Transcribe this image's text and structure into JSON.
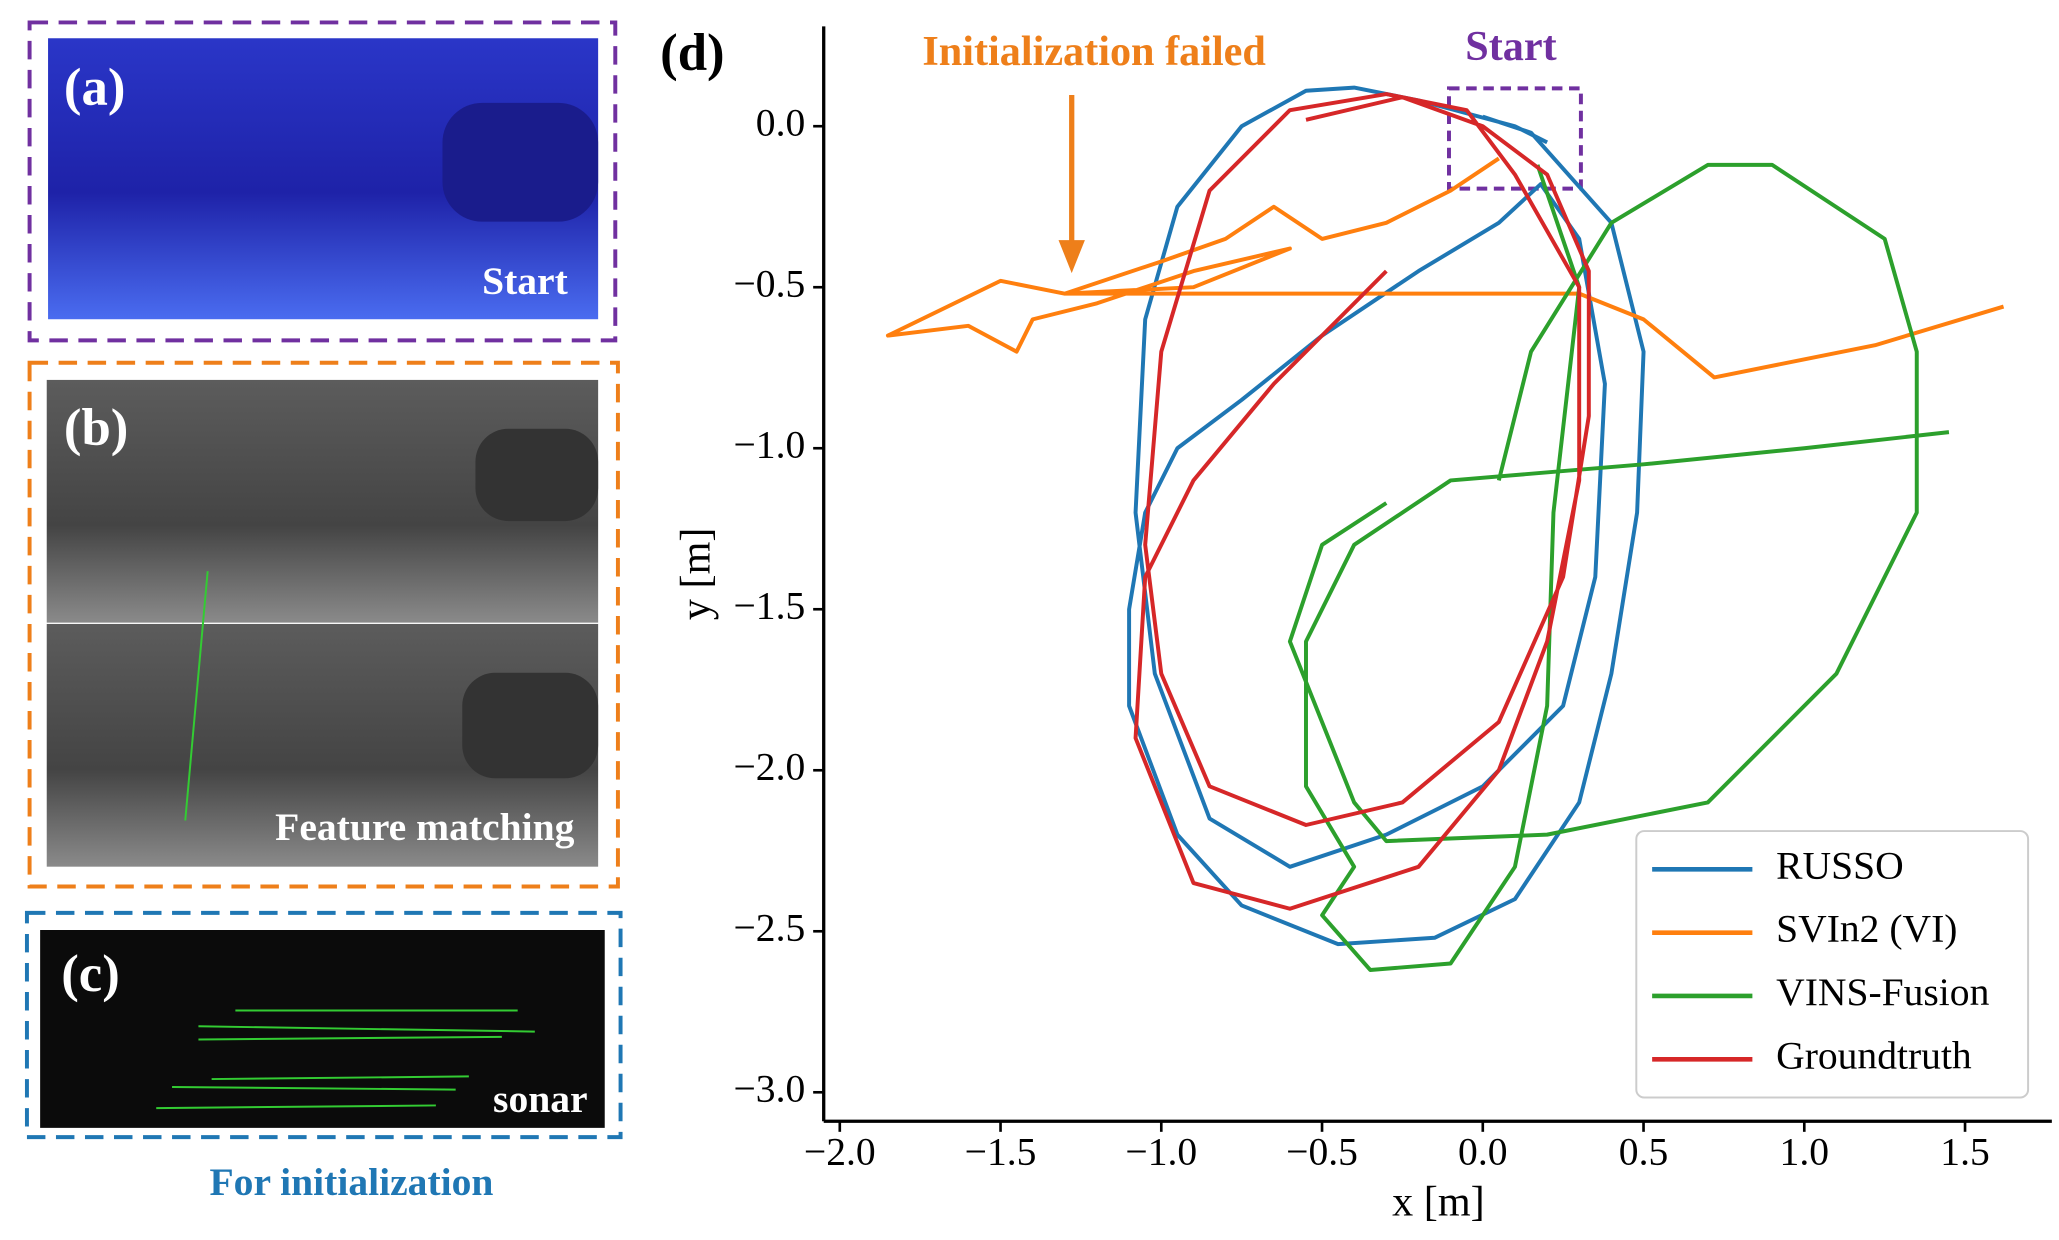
{
  "panels": [
    {
      "label": "(a)",
      "caption": "Start"
    },
    {
      "label": "(b)",
      "caption": "Feature matching"
    },
    {
      "label": "(c)",
      "caption": "sonar"
    }
  ],
  "footer": "For initialization",
  "chart_data": {
    "type": "line",
    "panel_label": "(d)",
    "x_label": "x [m]",
    "y_label": "y [m]",
    "annotations": [
      {
        "text": "Initialization failed",
        "color": "#ee7f1a"
      },
      {
        "text": "Start",
        "color": "#7030a0"
      }
    ],
    "xlim": [
      -2.05,
      1.77
    ],
    "ylim": [
      -3.09,
      0.31
    ],
    "xticks": [
      {
        "value": -2,
        "label": "−2.0"
      },
      {
        "value": -1.5,
        "label": "−1.5"
      },
      {
        "value": -1,
        "label": "−1.0"
      },
      {
        "value": -0.5,
        "label": "−0.5"
      },
      {
        "value": 0,
        "label": "0.0"
      },
      0.5,
      {
        "value": 1,
        "label": "1.0"
      },
      1.5
    ],
    "yticks": [
      {
        "value": 0,
        "label": "0.0"
      },
      {
        "value": -0.5,
        "label": "−0.5"
      },
      {
        "value": -1,
        "label": "−1.0"
      },
      {
        "value": -1.5,
        "label": "−1.5"
      },
      {
        "value": -2,
        "label": "−2.0"
      },
      {
        "value": -2.5,
        "label": "−2.5"
      },
      {
        "value": -3,
        "label": "−3.0"
      }
    ],
    "legend": "lower right",
    "series": [
      {
        "name": "RUSSO",
        "color": "#1f77b4",
        "x": [
          0.0,
          0.15,
          0.4,
          0.5,
          0.48,
          0.4,
          0.3,
          0.1,
          -0.15,
          -0.45,
          -0.75,
          -0.95,
          -1.1,
          -1.1,
          -1.05,
          -0.95,
          -0.75,
          -0.5,
          -0.2,
          0.05,
          0.18,
          0.3,
          0.38,
          0.35,
          0.25,
          0.0,
          -0.3,
          -0.6,
          -0.85,
          -1.02,
          -1.08,
          -1.05,
          -0.95,
          -0.75,
          -0.55,
          -0.4,
          -0.2,
          0.1,
          0.2
        ],
        "values": [
          0.03,
          -0.02,
          -0.3,
          -0.7,
          -1.2,
          -1.7,
          -2.1,
          -2.4,
          -2.52,
          -2.54,
          -2.42,
          -2.2,
          -1.8,
          -1.5,
          -1.2,
          -1.0,
          -0.85,
          -0.65,
          -0.45,
          -0.3,
          -0.18,
          -0.35,
          -0.8,
          -1.4,
          -1.8,
          -2.05,
          -2.2,
          -2.3,
          -2.15,
          -1.7,
          -1.2,
          -0.6,
          -0.25,
          0.0,
          0.11,
          0.12,
          0.08,
          0.0,
          -0.05
        ]
      },
      {
        "name": "SVIn2 (VI)",
        "color": "#ff7f0e",
        "x": [
          0.05,
          -0.1,
          -0.3,
          -0.5,
          -0.65,
          -0.8,
          -1.0,
          -1.3,
          -1.5,
          -1.85,
          -1.6,
          -1.45,
          -1.4,
          -1.2,
          -0.9,
          -0.6,
          -0.9,
          -1.3,
          0.3,
          0.5,
          0.72,
          1.22,
          1.62
        ],
        "values": [
          -0.1,
          -0.2,
          -0.3,
          -0.35,
          -0.25,
          -0.35,
          -0.42,
          -0.52,
          -0.48,
          -0.65,
          -0.62,
          -0.7,
          -0.6,
          -0.55,
          -0.45,
          -0.38,
          -0.5,
          -0.52,
          -0.52,
          -0.6,
          -0.78,
          -0.68,
          -0.56
        ]
      },
      {
        "name": "VINS-Fusion",
        "color": "#2ca02c",
        "x": [
          0.17,
          0.3,
          0.22,
          0.2,
          0.1,
          -0.1,
          -0.35,
          -0.5,
          -0.4,
          -0.55,
          -0.55,
          -0.4,
          -0.1,
          0.5,
          1.0,
          1.45,
          null,
          -0.3,
          -0.5,
          -0.6,
          -0.4,
          -0.3,
          0.2,
          0.7,
          1.1,
          1.35,
          1.35,
          1.25,
          0.9,
          0.7,
          0.4,
          0.15,
          0.05
        ],
        "values": [
          -0.12,
          -0.5,
          -1.2,
          -1.8,
          -2.3,
          -2.6,
          -2.62,
          -2.45,
          -2.3,
          -2.05,
          -1.6,
          -1.3,
          -1.1,
          -1.05,
          -1.0,
          -0.95,
          null,
          -1.17,
          -1.3,
          -1.6,
          -2.1,
          -2.22,
          -2.2,
          -2.1,
          -1.7,
          -1.2,
          -0.7,
          -0.35,
          -0.12,
          -0.12,
          -0.3,
          -0.7,
          -1.1
        ]
      },
      {
        "name": "Groundtruth",
        "color": "#d62728",
        "x": [
          -0.55,
          -0.25,
          0.0,
          0.2,
          0.33,
          0.33,
          0.25,
          0.05,
          -0.25,
          -0.55,
          -0.85,
          -1.0,
          -1.05,
          -1.0,
          -0.85,
          -0.6,
          -0.3,
          -0.05,
          0.1,
          0.3,
          0.3,
          0.2,
          0.05,
          -0.2,
          -0.6,
          -0.9,
          -1.08,
          -1.05,
          -0.9,
          -0.65,
          -0.3
        ],
        "values": [
          0.02,
          0.09,
          0.0,
          -0.15,
          -0.45,
          -0.9,
          -1.4,
          -1.85,
          -2.1,
          -2.17,
          -2.05,
          -1.7,
          -1.3,
          -0.7,
          -0.2,
          0.05,
          0.1,
          0.05,
          -0.15,
          -0.5,
          -1.1,
          -1.6,
          -2.0,
          -2.3,
          -2.43,
          -2.35,
          -1.9,
          -1.4,
          -1.1,
          -0.8,
          -0.45
        ]
      }
    ]
  }
}
